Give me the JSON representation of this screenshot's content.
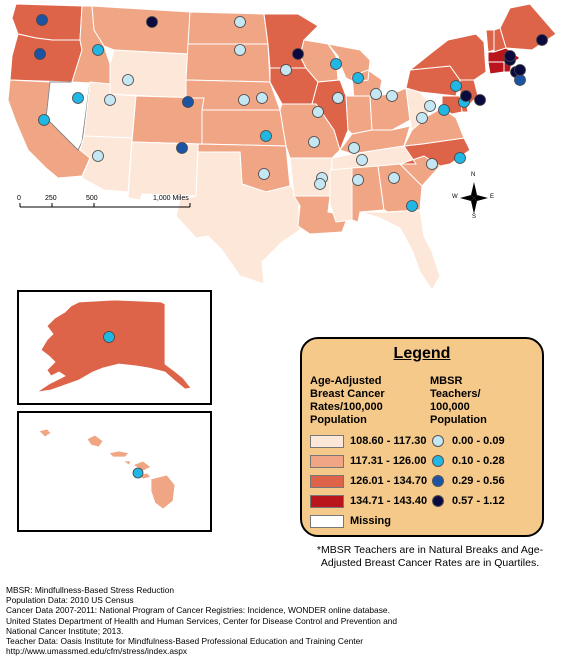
{
  "colors": {
    "q1": "#fde7d8",
    "q2": "#f0a584",
    "q3": "#de6449",
    "q4": "#b8161c",
    "missing": "#ffffff",
    "legend_bg": "#f4c98a",
    "t1": "#c5e6f3",
    "t2": "#21b7e4",
    "t3": "#1c54a5",
    "t4": "#0a0a3e"
  },
  "scale": {
    "ticks": [
      "0",
      "250",
      "500",
      "1,000 Miles"
    ]
  },
  "compass": {
    "n": "N",
    "s": "S",
    "e": "E",
    "w": "W"
  },
  "legend": {
    "title": "Legend",
    "rates_heading": "Age-Adjusted\nBreast Cancer\nRates/100,000\nPopulation",
    "teachers_heading": "MBSR\nTeachers/\n100,000\nPopulation",
    "rate_classes": [
      {
        "label": "108.60 - 117.30",
        "color": "#fde7d8"
      },
      {
        "label": "117.31 - 126.00",
        "color": "#f0a584"
      },
      {
        "label": "126.01 - 134.70",
        "color": "#de6449"
      },
      {
        "label": "134.71 - 143.40",
        "color": "#b8161c"
      },
      {
        "label": "Missing",
        "color": "#ffffff"
      }
    ],
    "teacher_classes": [
      {
        "label": "0.00 - 0.09",
        "color": "#c5e6f3"
      },
      {
        "label": "0.10 - 0.28",
        "color": "#21b7e4"
      },
      {
        "label": "0.29 - 0.56",
        "color": "#1c54a5"
      },
      {
        "label": "0.57 - 1.12",
        "color": "#0a0a3e"
      }
    ]
  },
  "note": "*MBSR Teachers are in Natural Breaks and Age-Adjusted Breast Cancer Rates are in Quartiles.",
  "sources": [
    "MBSR: Mindfullness-Based Stress Reduction",
    "Population Data: 2010 US Census",
    "Cancer Data 2007-2011: National Program of Cancer Registries: Incidence, WONDER online database.",
    "United States Department of Health and Human Services, Center for Disease Control and Prevention and",
    "National Cancer Institute; 2013.",
    "Teacher Data: Oasis Institute for Mindfulness-Based Professional Education and Training Center",
    "http://www.umassmed.edu/cfm/stress/index.aspx"
  ],
  "states": [
    {
      "id": "WA",
      "rate_class": 3,
      "teacher_class": 3
    },
    {
      "id": "OR",
      "rate_class": 3,
      "teacher_class": 3
    },
    {
      "id": "CA",
      "rate_class": 2,
      "teacher_class": 2
    },
    {
      "id": "NV",
      "rate_class": 5,
      "teacher_class": 2
    },
    {
      "id": "ID",
      "rate_class": 2,
      "teacher_class": 2
    },
    {
      "id": "MT",
      "rate_class": 2,
      "teacher_class": 4
    },
    {
      "id": "WY",
      "rate_class": 1,
      "teacher_class": 1
    },
    {
      "id": "UT",
      "rate_class": 1,
      "teacher_class": 1
    },
    {
      "id": "AZ",
      "rate_class": 1,
      "teacher_class": 1
    },
    {
      "id": "CO",
      "rate_class": 2,
      "teacher_class": 3
    },
    {
      "id": "NM",
      "rate_class": 1,
      "teacher_class": 3
    },
    {
      "id": "ND",
      "rate_class": 2,
      "teacher_class": 1
    },
    {
      "id": "SD",
      "rate_class": 2,
      "teacher_class": 1
    },
    {
      "id": "NE",
      "rate_class": 2,
      "teacher_class": 1
    },
    {
      "id": "KS",
      "rate_class": 2,
      "teacher_class": 1
    },
    {
      "id": "OK",
      "rate_class": 2,
      "teacher_class": 2
    },
    {
      "id": "TX",
      "rate_class": 1,
      "teacher_class": 1
    },
    {
      "id": "MN",
      "rate_class": 3,
      "teacher_class": 4
    },
    {
      "id": "IA",
      "rate_class": 3,
      "teacher_class": 1
    },
    {
      "id": "MO",
      "rate_class": 2,
      "teacher_class": 1
    },
    {
      "id": "AR",
      "rate_class": 1,
      "teacher_class": 1
    },
    {
      "id": "LA",
      "rate_class": 2,
      "teacher_class": 1
    },
    {
      "id": "WI",
      "rate_class": 2,
      "teacher_class": 2
    },
    {
      "id": "IL",
      "rate_class": 3,
      "teacher_class": 1
    },
    {
      "id": "MI",
      "rate_class": 2,
      "teacher_class": 2
    },
    {
      "id": "IN",
      "rate_class": 2,
      "teacher_class": 1
    },
    {
      "id": "OH",
      "rate_class": 2,
      "teacher_class": 1
    },
    {
      "id": "KY",
      "rate_class": 2,
      "teacher_class": 1
    },
    {
      "id": "TN",
      "rate_class": 1,
      "teacher_class": 1
    },
    {
      "id": "MS",
      "rate_class": 1,
      "teacher_class": 1
    },
    {
      "id": "AL",
      "rate_class": 2,
      "teacher_class": 1
    },
    {
      "id": "GA",
      "rate_class": 2,
      "teacher_class": 1
    },
    {
      "id": "FL",
      "rate_class": 1,
      "teacher_class": 2
    },
    {
      "id": "SC",
      "rate_class": 2,
      "teacher_class": 1
    },
    {
      "id": "NC",
      "rate_class": 3,
      "teacher_class": 2
    },
    {
      "id": "VA",
      "rate_class": 2,
      "teacher_class": 1
    },
    {
      "id": "WV",
      "rate_class": 1,
      "teacher_class": 1
    },
    {
      "id": "PA",
      "rate_class": 3,
      "teacher_class": 2
    },
    {
      "id": "NY",
      "rate_class": 3,
      "teacher_class": 2
    },
    {
      "id": "ME",
      "rate_class": 3,
      "teacher_class": 4
    },
    {
      "id": "NH",
      "rate_class": 3,
      "teacher_class": 4
    },
    {
      "id": "VT",
      "rate_class": 3,
      "teacher_class": 4
    },
    {
      "id": "MA",
      "rate_class": 4,
      "teacher_class": 4
    },
    {
      "id": "CT",
      "rate_class": 4,
      "teacher_class": 3
    },
    {
      "id": "RI",
      "rate_class": 4,
      "teacher_class": 4
    },
    {
      "id": "NJ",
      "rate_class": 3,
      "teacher_class": 4
    },
    {
      "id": "DE",
      "rate_class": 3,
      "teacher_class": 2
    },
    {
      "id": "MD",
      "rate_class": 3,
      "teacher_class": 4
    },
    {
      "id": "AK",
      "rate_class": 3,
      "teacher_class": 2
    },
    {
      "id": "HI",
      "rate_class": 2,
      "teacher_class": 2
    }
  ]
}
